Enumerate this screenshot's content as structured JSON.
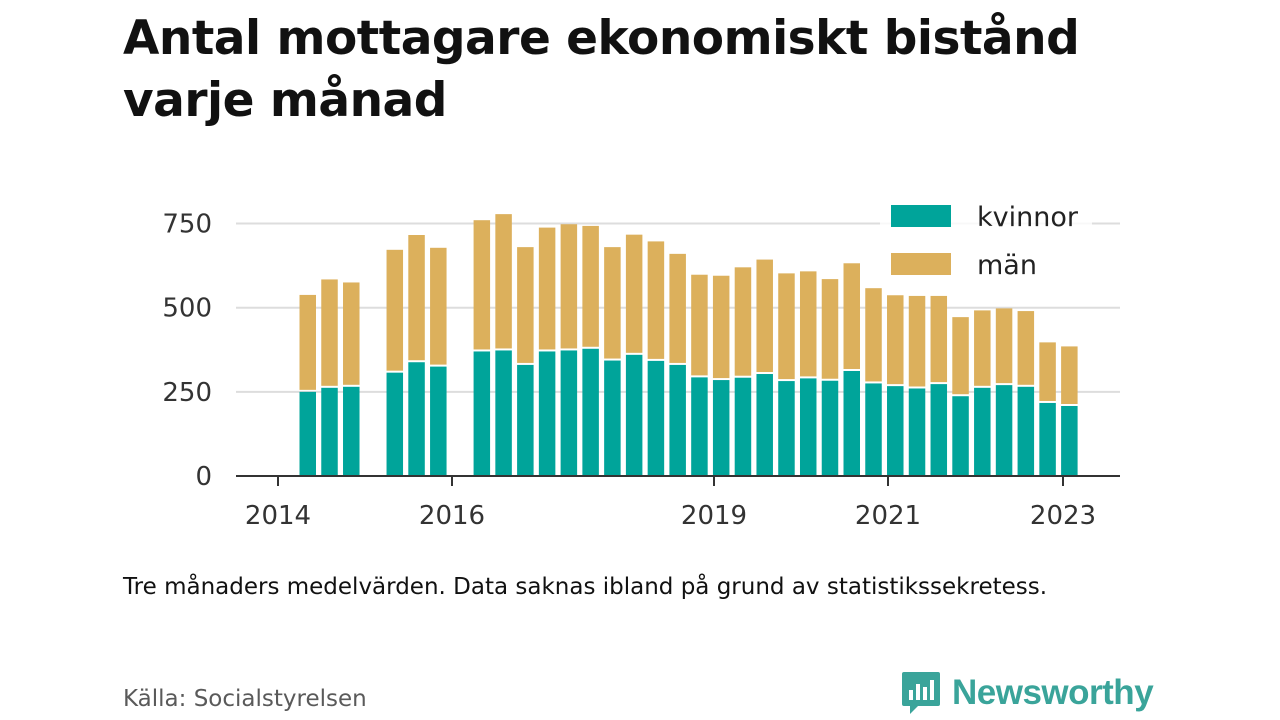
{
  "header": {
    "title": "Antal mottagare ekonomiskt bistånd varje månad"
  },
  "footer": {
    "note": "Tre månaders medelvärden. Data saknas ibland på grund av statistikssekretess.",
    "source": "Källa: Socialstyrelsen",
    "brand": "Newsworthy"
  },
  "colors": {
    "kvinnor": "#00a49a",
    "man": "#dcb05c",
    "grid": "#dddddd",
    "axis": "#333333",
    "brand": "#3aa49a"
  },
  "chart_data": {
    "type": "bar",
    "stacked": true,
    "x_ticks": [
      {
        "x": "2014",
        "label": "2014"
      },
      {
        "x": "2016",
        "label": "2016"
      },
      {
        "x": "2019",
        "label": "2019"
      },
      {
        "x": "2021",
        "label": "2021"
      },
      {
        "x": "2023",
        "label": "2023"
      }
    ],
    "yticks": [
      0,
      250,
      500,
      750
    ],
    "ylim": [
      0,
      820
    ],
    "grid": true,
    "legend": {
      "position": "top-right",
      "entries": [
        "kvinnor",
        "män"
      ]
    },
    "series": [
      {
        "name": "kvinnor",
        "color": "#00a49a",
        "values": [
          250,
          262,
          265,
          null,
          307,
          338,
          325,
          null,
          370,
          373,
          330,
          370,
          373,
          378,
          343,
          360,
          342,
          330,
          293,
          285,
          292,
          303,
          282,
          290,
          283,
          312,
          275,
          267,
          260,
          273,
          237,
          262,
          270,
          265,
          217,
          208
        ]
      },
      {
        "name": "män",
        "color": "#dcb05c",
        "values": [
          288,
          322,
          310,
          null,
          365,
          378,
          353,
          null,
          390,
          405,
          350,
          368,
          375,
          365,
          337,
          357,
          355,
          330,
          305,
          310,
          328,
          340,
          320,
          318,
          302,
          320,
          283,
          270,
          275,
          262,
          235,
          230,
          228,
          225,
          180,
          177
        ]
      }
    ]
  }
}
